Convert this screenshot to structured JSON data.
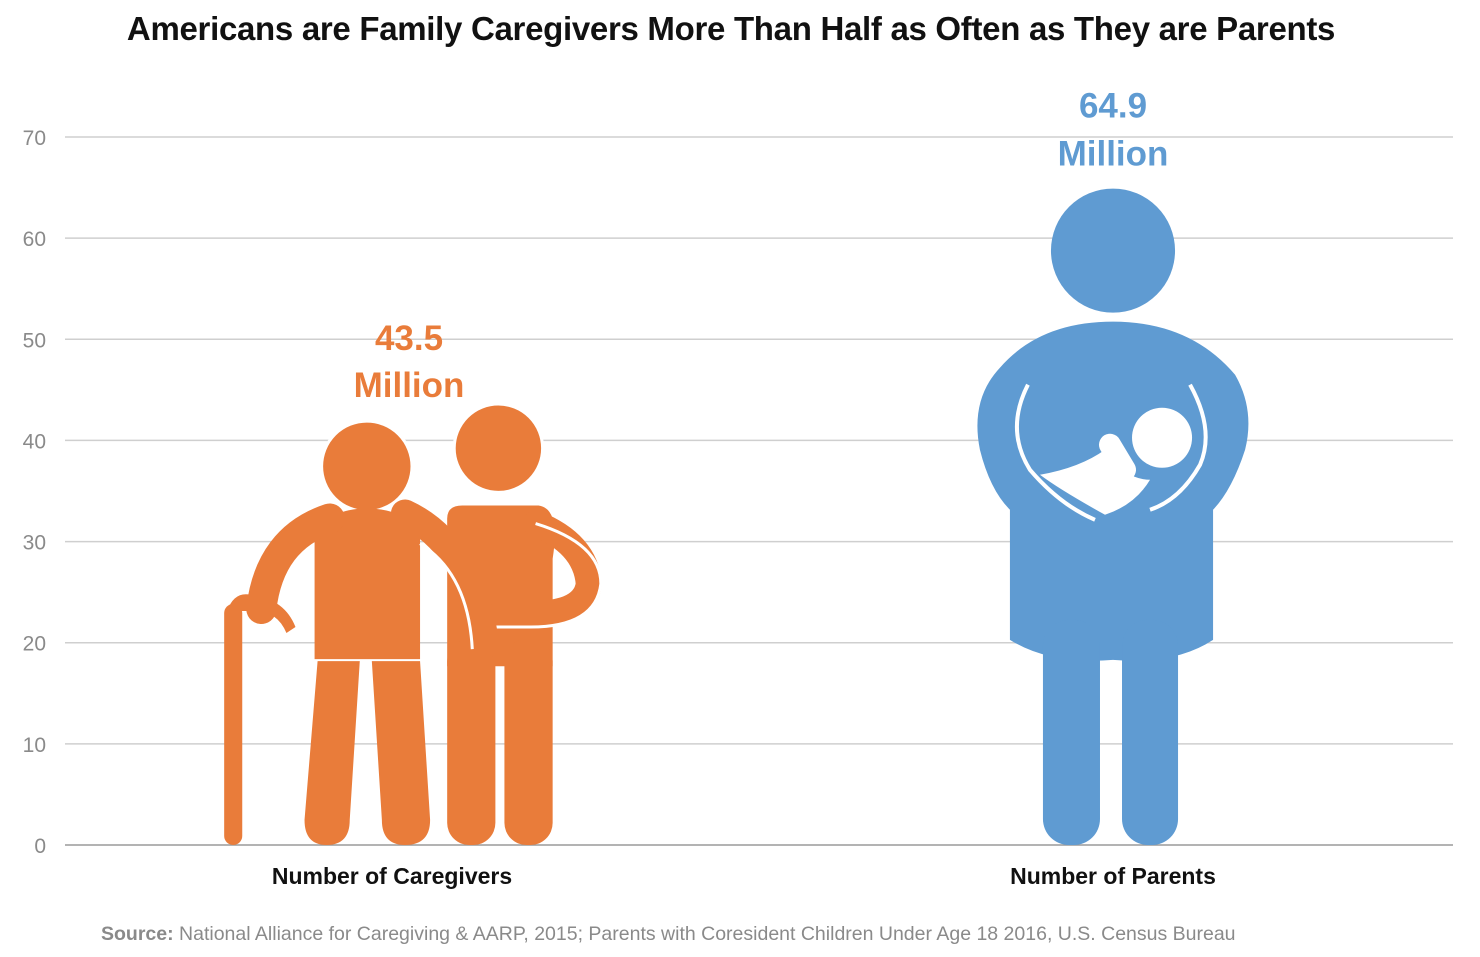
{
  "chart_data": {
    "type": "bar",
    "title": "Americans are Family Caregivers More Than Half as Often as They are Parents",
    "categories": [
      "Number of Caregivers",
      "Number of Parents"
    ],
    "values": [
      43.5,
      64.9
    ],
    "data_labels": [
      [
        "43.5",
        "Million"
      ],
      [
        "64.9",
        "Million"
      ]
    ],
    "colors": [
      "#E97C3A",
      "#5F9BD2"
    ],
    "mark_style": "pictograph",
    "icons": [
      "elderly-person-with-caregiver-icon",
      "parent-holding-baby-icon"
    ],
    "ylim": [
      0,
      70
    ],
    "yticks": [
      0,
      10,
      20,
      30,
      40,
      50,
      60,
      70
    ],
    "grid": true,
    "xlabel": "",
    "ylabel": ""
  },
  "source": {
    "label": "Source:",
    "text": " National Alliance for Caregiving & AARP, 2015; Parents with Coresident Children Under Age 18 2016, U.S. Census Bureau"
  }
}
